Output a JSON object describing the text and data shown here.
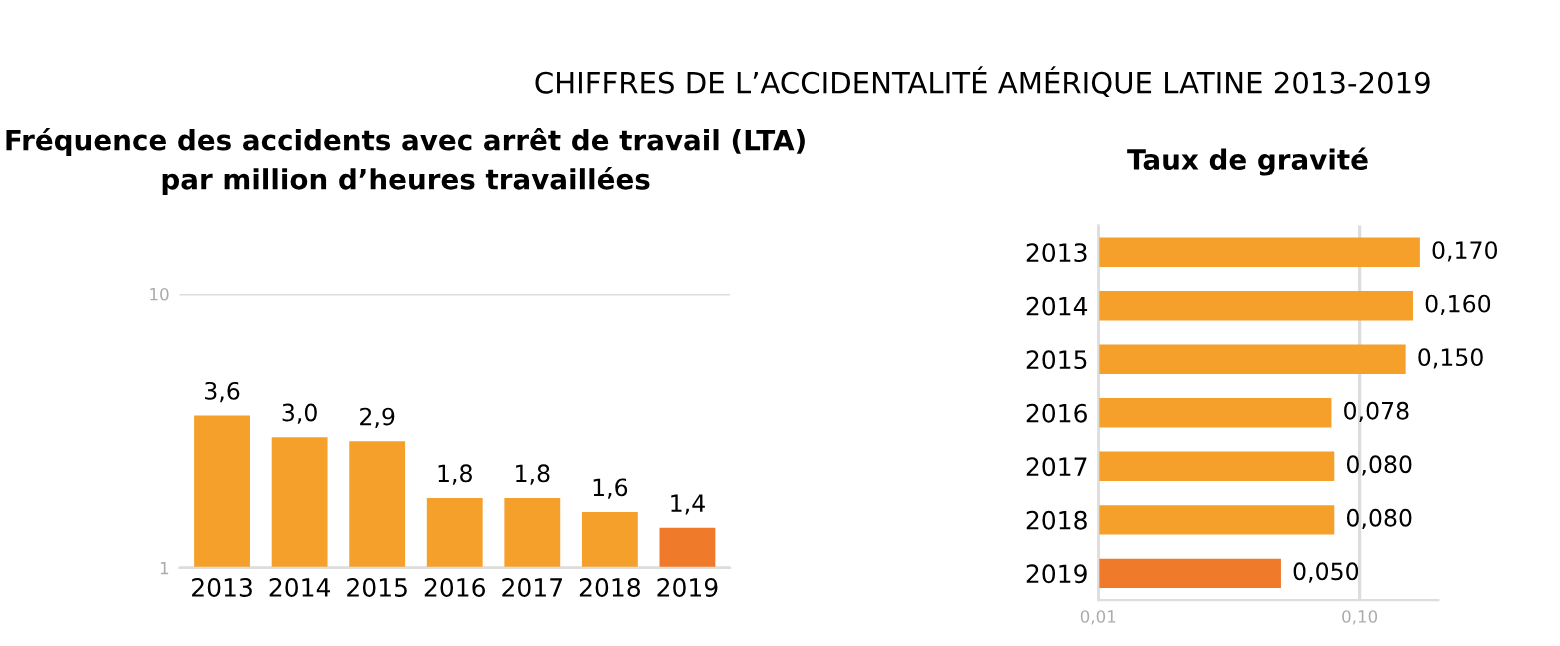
{
  "chart_data": [
    {
      "type": "bar",
      "title": "Fréquence des accidents avec arrêt de travail (LTA)\npar million d’heures travaillées",
      "annotations": [
        "CHIFFRES DE L’ACCIDENTALITÉ AMÉRIQUE LATINE 2013-2019"
      ],
      "categories": [
        "2013",
        "2014",
        "2015",
        "2016",
        "2017",
        "2018",
        "2019"
      ],
      "values": [
        3.6,
        3.0,
        2.9,
        1.8,
        1.8,
        1.6,
        1.4
      ],
      "value_labels": [
        "3,6",
        "3,0",
        "2,9",
        "1,8",
        "1,8",
        "1,6",
        "1,4"
      ],
      "colors": [
        "#f5a02a",
        "#f5a02a",
        "#f5a02a",
        "#f5a02a",
        "#f5a02a",
        "#f5a02a",
        "#ee7a2a"
      ],
      "log": "y",
      "ylim": [
        1,
        10
      ],
      "yticks": [
        1,
        10
      ],
      "grid": "y"
    },
    {
      "type": "bar",
      "orientation": "horizontal",
      "title": "Taux de gravité",
      "categories": [
        "2013",
        "2014",
        "2015",
        "2016",
        "2017",
        "2018",
        "2019"
      ],
      "values": [
        0.17,
        0.16,
        0.15,
        0.078,
        0.08,
        0.08,
        0.05
      ],
      "value_labels": [
        "0,170",
        "0,160",
        "0,150",
        "0,078",
        "0,080",
        "0,080",
        "0,050"
      ],
      "colors": [
        "#f5a02a",
        "#f5a02a",
        "#f5a02a",
        "#f5a02a",
        "#f5a02a",
        "#f5a02a",
        "#ee7a2a"
      ],
      "log": "x",
      "xlim": [
        0.01,
        0.2
      ],
      "xticks": [
        {
          "value": 0.01,
          "label": "0,01"
        },
        {
          "value": 0.1,
          "label": "0,10"
        }
      ],
      "grid": "x"
    }
  ]
}
